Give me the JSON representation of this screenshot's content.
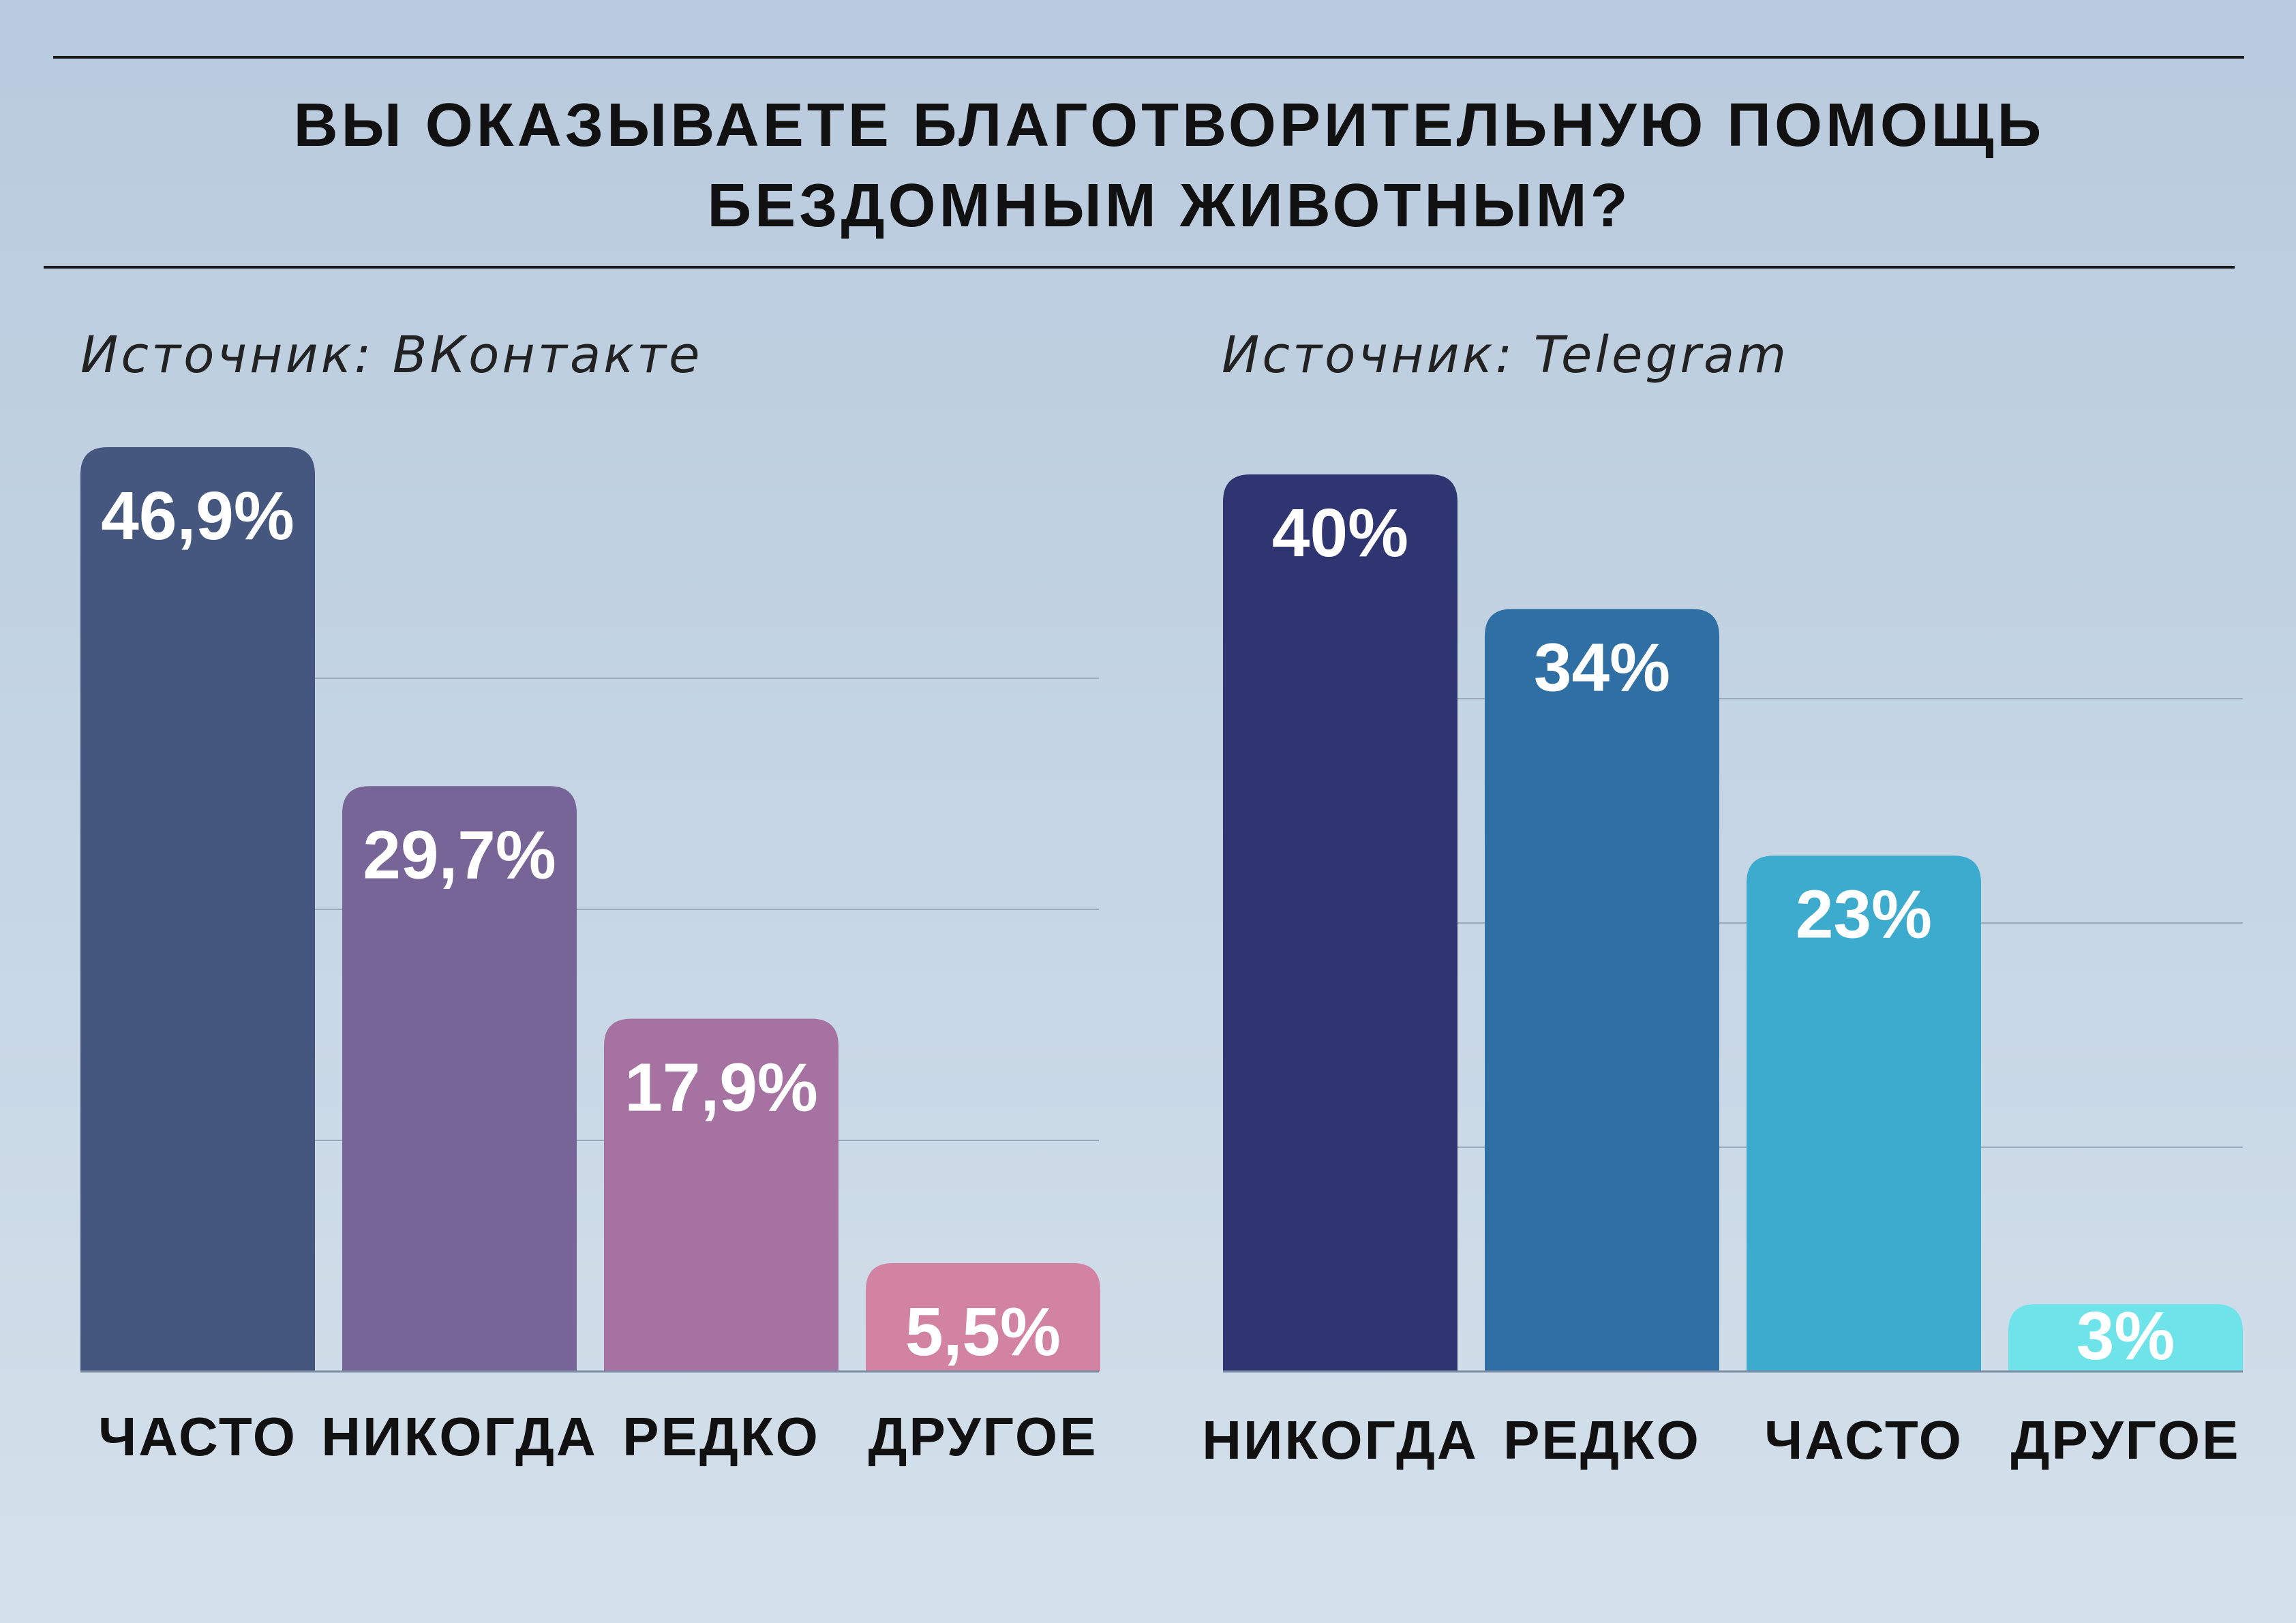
{
  "title": "ВЫ ОКАЗЫВАЕТЕ БЛАГОТВОРИТЕЛЬНУЮ ПОМОЩЬ\nБЕЗДОМНЫМ ЖИВОТНЫМ?",
  "chart_data": [
    {
      "type": "bar",
      "source": "Источник: ВКонтакте",
      "categories": [
        "ЧАСТО",
        "НИКОГДА",
        "РЕДКО",
        "ДРУГОЕ"
      ],
      "values": [
        46.9,
        29.7,
        17.9,
        5.5
      ],
      "value_labels": [
        "46,9%",
        "29,7%",
        "17,9%",
        "5,5%"
      ],
      "colors": [
        "#45577f",
        "#786598",
        "#a572a2",
        "#d283a2"
      ],
      "ylim": [
        0,
        50
      ],
      "grid": true
    },
    {
      "type": "bar",
      "source": "Источник: Telegram",
      "categories": [
        "НИКОГДА",
        "РЕДКО",
        "ЧАСТО",
        "ДРУГОЕ"
      ],
      "values": [
        40,
        34,
        23,
        3
      ],
      "value_labels": [
        "40%",
        "34%",
        "23%",
        "3%"
      ],
      "colors": [
        "#2f3570",
        "#2f6fa4",
        "#3cabce",
        "#6ee3ea"
      ],
      "ylim": [
        0,
        40
      ],
      "grid": true
    }
  ]
}
